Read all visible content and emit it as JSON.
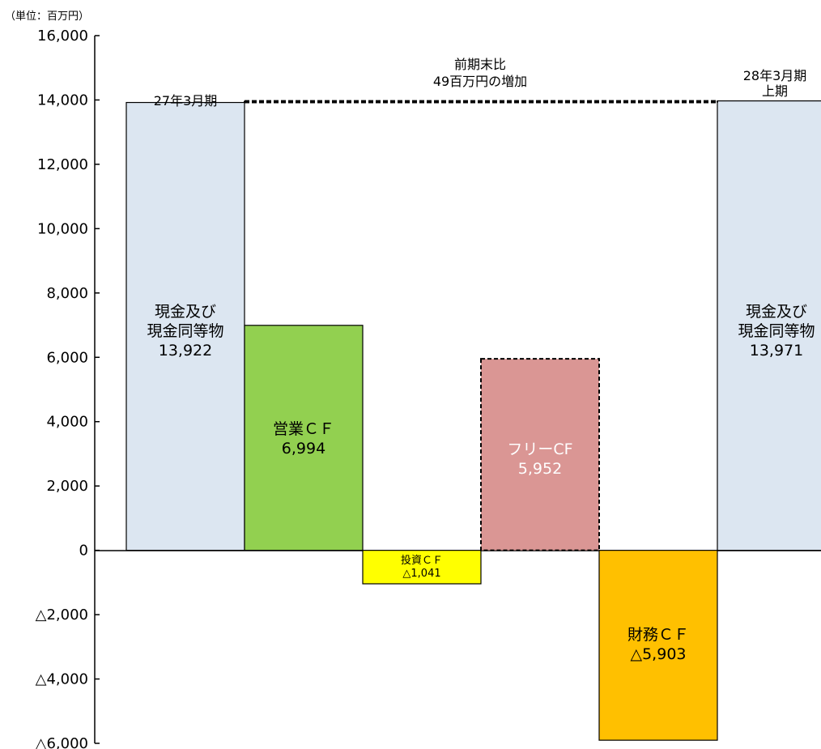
{
  "chart_data": {
    "type": "bar",
    "unit_label": "（単位：百万円）",
    "ylim": [
      -6000,
      16000
    ],
    "y_ticks": [
      16000,
      14000,
      12000,
      10000,
      8000,
      6000,
      4000,
      2000,
      0,
      -2000,
      -4000,
      -6000
    ],
    "y_tick_labels": [
      "16,000",
      "14,000",
      "12,000",
      "10,000",
      "8,000",
      "6,000",
      "4,000",
      "2,000",
      "0",
      "△2,000",
      "△4,000",
      "△6,000"
    ],
    "grid": false,
    "bars": [
      {
        "key": "cash-start",
        "label_lines": [
          "現金及び",
          "現金同等物",
          "13,922"
        ],
        "base": 0,
        "top": 13922,
        "value": 13922,
        "color": "#dce6f1",
        "dashed": false
      },
      {
        "key": "operating-cf",
        "label_lines": [
          "営業ＣＦ",
          "6,994"
        ],
        "base": 0,
        "top": 6994,
        "value": 6994,
        "color": "#92d050",
        "dashed": false
      },
      {
        "key": "investing-cf",
        "label_lines": [
          "投資ＣＦ",
          "△1,041"
        ],
        "base": 0,
        "top": -1041,
        "value": -1041,
        "color": "#ffff00",
        "dashed": false
      },
      {
        "key": "free-cf",
        "label_lines": [
          "フリーCF",
          "5,952"
        ],
        "base": 0,
        "top": 5952,
        "value": 5952,
        "color": "#da9694",
        "dashed": true
      },
      {
        "key": "financing-cf",
        "label_lines": [
          "財務ＣＦ",
          "△5,903"
        ],
        "base": 0,
        "top": -5903,
        "value": -5903,
        "color": "#ffc000",
        "dashed": false
      },
      {
        "key": "cash-end",
        "label_lines": [
          "現金及び",
          "現金同等物",
          "13,971"
        ],
        "base": 0,
        "top": 13971,
        "value": 13971,
        "color": "#dce6f1",
        "dashed": false
      }
    ],
    "period_labels": {
      "start": "27年3月期",
      "end_line1": "28年3月期",
      "end_line2": "上期"
    },
    "annotation": {
      "line1": "前期末比",
      "line2": "49百万円の増加"
    }
  }
}
